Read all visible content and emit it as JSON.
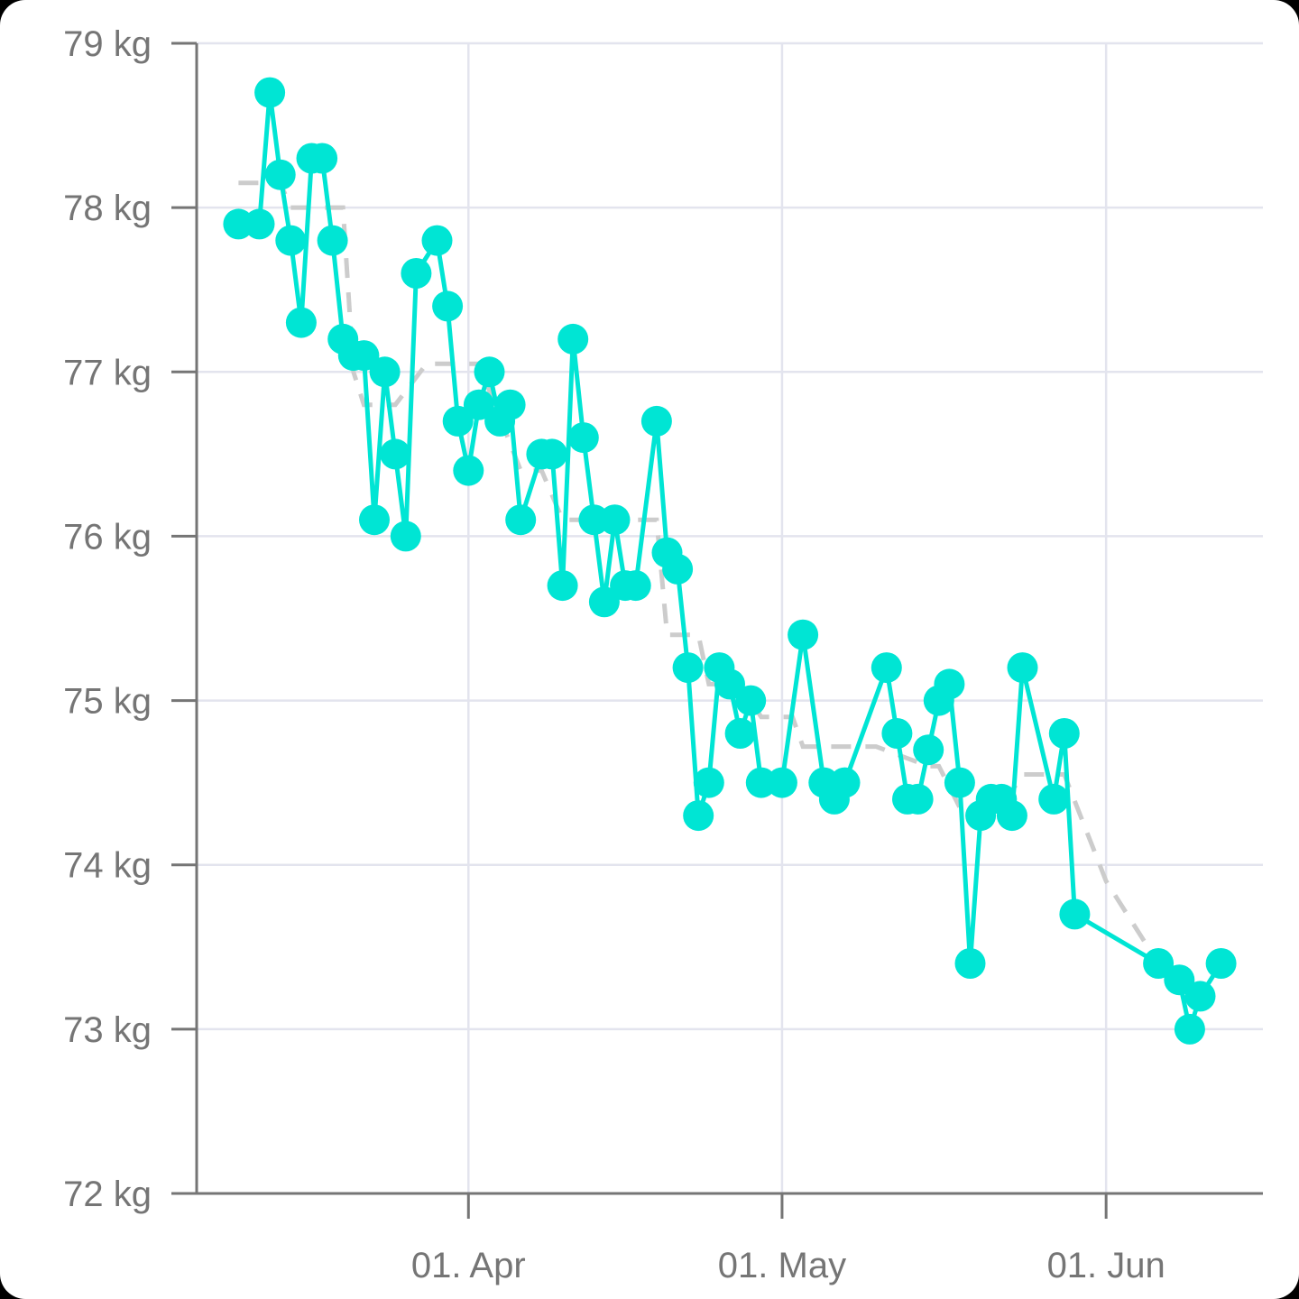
{
  "chart_data": {
    "type": "line",
    "ylabel": "",
    "xlabel": "",
    "ylim": [
      72,
      79
    ],
    "xlim": [
      "2023-03-06",
      "2023-06-16"
    ],
    "y_ticks": [
      {
        "value": 72,
        "label": "72 kg"
      },
      {
        "value": 73,
        "label": "73 kg"
      },
      {
        "value": 74,
        "label": "74 kg"
      },
      {
        "value": 75,
        "label": "75 kg"
      },
      {
        "value": 76,
        "label": "76 kg"
      },
      {
        "value": 77,
        "label": "77 kg"
      },
      {
        "value": 78,
        "label": "78 kg"
      },
      {
        "value": 79,
        "label": "79 kg"
      }
    ],
    "x_ticks": [
      {
        "date": "2023-04-01",
        "label": "01. Apr"
      },
      {
        "date": "2023-05-01",
        "label": "01. May"
      },
      {
        "date": "2023-06-01",
        "label": "01. Jun"
      }
    ],
    "grid": true,
    "colors": {
      "weight": "#00e5d4",
      "average": "#cccccc",
      "grid": "#e3e4ee",
      "axis": "#757575"
    },
    "series": [
      {
        "style": "solid-markers",
        "points": [
          {
            "x": "2023-03-10",
            "y": 77.9
          },
          {
            "x": "2023-03-12",
            "y": 77.9
          },
          {
            "x": "2023-03-13",
            "y": 78.7
          },
          {
            "x": "2023-03-14",
            "y": 78.2
          },
          {
            "x": "2023-03-15",
            "y": 77.8
          },
          {
            "x": "2023-03-16",
            "y": 77.3
          },
          {
            "x": "2023-03-17",
            "y": 78.3
          },
          {
            "x": "2023-03-18",
            "y": 78.3
          },
          {
            "x": "2023-03-19",
            "y": 77.8
          },
          {
            "x": "2023-03-20",
            "y": 77.2
          },
          {
            "x": "2023-03-21",
            "y": 77.1
          },
          {
            "x": "2023-03-22",
            "y": 77.1
          },
          {
            "x": "2023-03-23",
            "y": 76.1
          },
          {
            "x": "2023-03-24",
            "y": 77.0
          },
          {
            "x": "2023-03-25",
            "y": 76.5
          },
          {
            "x": "2023-03-26",
            "y": 76.0
          },
          {
            "x": "2023-03-27",
            "y": 77.6
          },
          {
            "x": "2023-03-29",
            "y": 77.8
          },
          {
            "x": "2023-03-30",
            "y": 77.4
          },
          {
            "x": "2023-03-31",
            "y": 76.7
          },
          {
            "x": "2023-04-01",
            "y": 76.4
          },
          {
            "x": "2023-04-02",
            "y": 76.8
          },
          {
            "x": "2023-04-03",
            "y": 77.0
          },
          {
            "x": "2023-04-04",
            "y": 76.7
          },
          {
            "x": "2023-04-05",
            "y": 76.8
          },
          {
            "x": "2023-04-06",
            "y": 76.1
          },
          {
            "x": "2023-04-08",
            "y": 76.5
          },
          {
            "x": "2023-04-09",
            "y": 76.5
          },
          {
            "x": "2023-04-10",
            "y": 75.7
          },
          {
            "x": "2023-04-11",
            "y": 77.2
          },
          {
            "x": "2023-04-12",
            "y": 76.6
          },
          {
            "x": "2023-04-13",
            "y": 76.1
          },
          {
            "x": "2023-04-14",
            "y": 75.6
          },
          {
            "x": "2023-04-15",
            "y": 76.1
          },
          {
            "x": "2023-04-16",
            "y": 75.7
          },
          {
            "x": "2023-04-17",
            "y": 75.7
          },
          {
            "x": "2023-04-19",
            "y": 76.7
          },
          {
            "x": "2023-04-20",
            "y": 75.9
          },
          {
            "x": "2023-04-21",
            "y": 75.8
          },
          {
            "x": "2023-04-22",
            "y": 75.2
          },
          {
            "x": "2023-04-23",
            "y": 74.3
          },
          {
            "x": "2023-04-24",
            "y": 74.5
          },
          {
            "x": "2023-04-25",
            "y": 75.2
          },
          {
            "x": "2023-04-26",
            "y": 75.1
          },
          {
            "x": "2023-04-27",
            "y": 74.8
          },
          {
            "x": "2023-04-28",
            "y": 75.0
          },
          {
            "x": "2023-04-29",
            "y": 74.5
          },
          {
            "x": "2023-05-01",
            "y": 74.5
          },
          {
            "x": "2023-05-03",
            "y": 75.4
          },
          {
            "x": "2023-05-05",
            "y": 74.5
          },
          {
            "x": "2023-05-06",
            "y": 74.4
          },
          {
            "x": "2023-05-07",
            "y": 74.5
          },
          {
            "x": "2023-05-11",
            "y": 75.2
          },
          {
            "x": "2023-05-12",
            "y": 74.8
          },
          {
            "x": "2023-05-13",
            "y": 74.4
          },
          {
            "x": "2023-05-14",
            "y": 74.4
          },
          {
            "x": "2023-05-15",
            "y": 74.7
          },
          {
            "x": "2023-05-16",
            "y": 75.0
          },
          {
            "x": "2023-05-17",
            "y": 75.1
          },
          {
            "x": "2023-05-18",
            "y": 74.5
          },
          {
            "x": "2023-05-19",
            "y": 73.4
          },
          {
            "x": "2023-05-20",
            "y": 74.3
          },
          {
            "x": "2023-05-21",
            "y": 74.4
          },
          {
            "x": "2023-05-22",
            "y": 74.4
          },
          {
            "x": "2023-05-23",
            "y": 74.3
          },
          {
            "x": "2023-05-24",
            "y": 75.2
          },
          {
            "x": "2023-05-27",
            "y": 74.4
          },
          {
            "x": "2023-05-28",
            "y": 74.8
          },
          {
            "x": "2023-05-29",
            "y": 73.7
          },
          {
            "x": "2023-06-06",
            "y": 73.4
          },
          {
            "x": "2023-06-08",
            "y": 73.3
          },
          {
            "x": "2023-06-09",
            "y": 73.0
          },
          {
            "x": "2023-06-10",
            "y": 73.2
          },
          {
            "x": "2023-06-12",
            "y": 73.4
          }
        ]
      },
      {
        "style": "dashed",
        "points": [
          {
            "x": "2023-03-10",
            "y": 78.15
          },
          {
            "x": "2023-03-14",
            "y": 78.15
          },
          {
            "x": "2023-03-15",
            "y": 78.0
          },
          {
            "x": "2023-03-20",
            "y": 78.0
          },
          {
            "x": "2023-03-21",
            "y": 77.0
          },
          {
            "x": "2023-03-22",
            "y": 76.8
          },
          {
            "x": "2023-03-25",
            "y": 76.8
          },
          {
            "x": "2023-03-28",
            "y": 77.05
          },
          {
            "x": "2023-04-02",
            "y": 77.05
          },
          {
            "x": "2023-04-06",
            "y": 76.4
          },
          {
            "x": "2023-04-08",
            "y": 76.4
          },
          {
            "x": "2023-04-10",
            "y": 76.1
          },
          {
            "x": "2023-04-19",
            "y": 76.1
          },
          {
            "x": "2023-04-20",
            "y": 75.4
          },
          {
            "x": "2023-04-23",
            "y": 75.4
          },
          {
            "x": "2023-04-24",
            "y": 75.1
          },
          {
            "x": "2023-04-27",
            "y": 75.1
          },
          {
            "x": "2023-04-29",
            "y": 74.9
          },
          {
            "x": "2023-05-02",
            "y": 74.9
          },
          {
            "x": "2023-05-03",
            "y": 74.72
          },
          {
            "x": "2023-05-10",
            "y": 74.72
          },
          {
            "x": "2023-05-15",
            "y": 74.6
          },
          {
            "x": "2023-05-16",
            "y": 74.6
          },
          {
            "x": "2023-05-18",
            "y": 74.35
          },
          {
            "x": "2023-05-22",
            "y": 74.35
          },
          {
            "x": "2023-05-24",
            "y": 74.55
          },
          {
            "x": "2023-05-28",
            "y": 74.55
          },
          {
            "x": "2023-06-01",
            "y": 73.9
          },
          {
            "x": "2023-06-06",
            "y": 73.4
          },
          {
            "x": "2023-06-11",
            "y": 73.2
          }
        ]
      }
    ]
  }
}
